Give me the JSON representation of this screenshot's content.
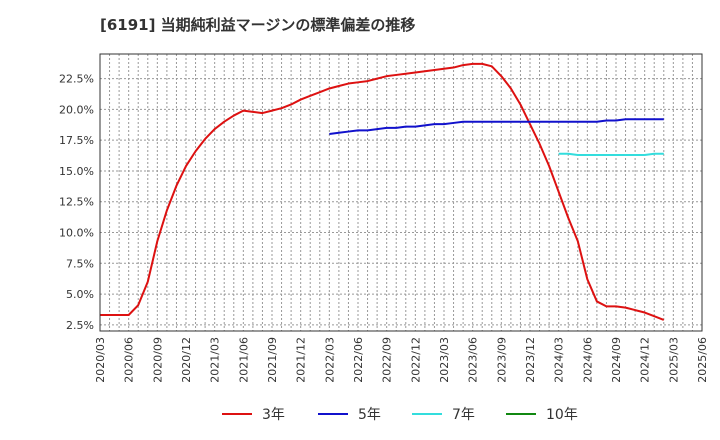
{
  "chart_data": {
    "type": "line",
    "title": "[6191]  当期純利益マージンの標準偏差の推移",
    "xlabel": "",
    "ylabel": "",
    "ylim": [
      2.0,
      24.5
    ],
    "y_ticks": [
      2.5,
      5.0,
      7.5,
      10.0,
      12.5,
      15.0,
      17.5,
      20.0,
      22.5
    ],
    "y_tick_labels": [
      "2.5%",
      "5.0%",
      "7.5%",
      "10.0%",
      "12.5%",
      "15.0%",
      "17.5%",
      "20.0%",
      "22.5%"
    ],
    "x_range_index": [
      0,
      63
    ],
    "x_tick_labels": [
      "2020/03",
      "2020/06",
      "2020/09",
      "2020/12",
      "2021/03",
      "2021/06",
      "2021/09",
      "2021/12",
      "2022/03",
      "2022/06",
      "2022/09",
      "2022/12",
      "2023/03",
      "2023/06",
      "2023/09",
      "2023/12",
      "2024/03",
      "2024/06",
      "2024/09",
      "2024/12",
      "2025/03",
      "2025/06"
    ],
    "grid": true,
    "legend_position": "bottom",
    "series": [
      {
        "name": "3年",
        "color": "#dd1111",
        "start_index": 0,
        "values": [
          3.3,
          3.3,
          3.3,
          3.3,
          4.1,
          6.0,
          9.3,
          11.8,
          13.8,
          15.4,
          16.6,
          17.6,
          18.4,
          19.0,
          19.5,
          19.9,
          19.8,
          19.7,
          19.9,
          20.1,
          20.4,
          20.8,
          21.1,
          21.4,
          21.7,
          21.9,
          22.1,
          22.2,
          22.3,
          22.5,
          22.7,
          22.8,
          22.9,
          23.0,
          23.1,
          23.2,
          23.3,
          23.4,
          23.6,
          23.7,
          23.7,
          23.5,
          22.7,
          21.7,
          20.4,
          18.8,
          17.2,
          15.4,
          13.3,
          11.2,
          9.3,
          6.2,
          4.4,
          4.0,
          4.0,
          3.9,
          3.7,
          3.5,
          3.2,
          2.9
        ]
      },
      {
        "name": "5年",
        "color": "#1111cc",
        "start_index": 24,
        "values": [
          18.0,
          18.1,
          18.2,
          18.3,
          18.3,
          18.4,
          18.5,
          18.5,
          18.6,
          18.6,
          18.7,
          18.8,
          18.8,
          18.9,
          19.0,
          19.0,
          19.0,
          19.0,
          19.0,
          19.0,
          19.0,
          19.0,
          19.0,
          19.0,
          19.0,
          19.0,
          19.0,
          19.0,
          19.0,
          19.1,
          19.1,
          19.2,
          19.2,
          19.2,
          19.2,
          19.2
        ]
      },
      {
        "name": "7年",
        "color": "#33dddd",
        "start_index": 48,
        "values": [
          16.4,
          16.4,
          16.3,
          16.3,
          16.3,
          16.3,
          16.3,
          16.3,
          16.3,
          16.3,
          16.4,
          16.4
        ]
      },
      {
        "name": "10年",
        "color": "#118811",
        "start_index": 60,
        "values": []
      }
    ]
  }
}
